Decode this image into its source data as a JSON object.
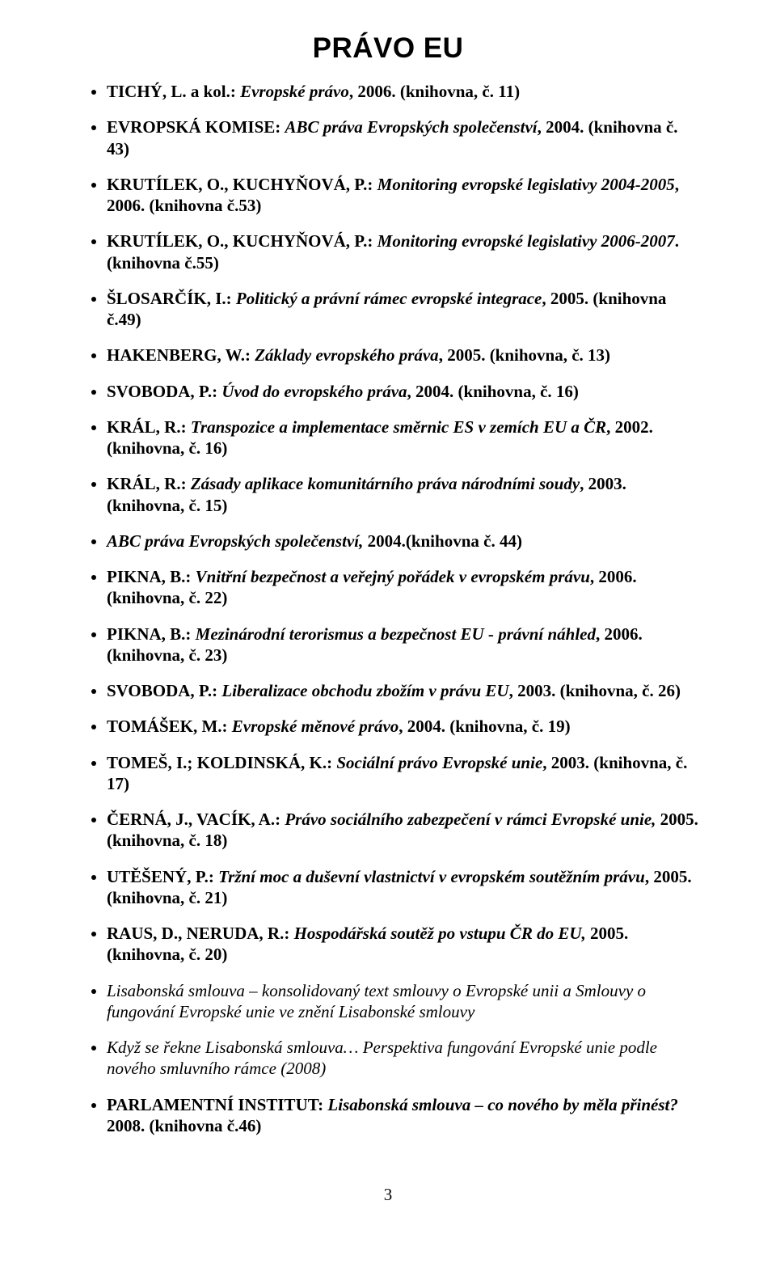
{
  "title": "PRÁVO EU",
  "page_number": "3",
  "entries": [
    {
      "segments": [
        {
          "cls": "b",
          "t": "TICHÝ, L. a kol.: "
        },
        {
          "cls": "bi",
          "t": "Evropské právo"
        },
        {
          "cls": "b",
          "t": ", 2006. (knihovna, č. 11)"
        }
      ]
    },
    {
      "segments": [
        {
          "cls": "b",
          "t": "EVROPSKÁ KOMISE: "
        },
        {
          "cls": "bi",
          "t": "ABC práva Evropských společenství"
        },
        {
          "cls": "b",
          "t": ", 2004. (knihovna č. 43)"
        }
      ]
    },
    {
      "segments": [
        {
          "cls": "b",
          "t": "KRUTÍLEK, O., KUCHYŇOVÁ, P.: "
        },
        {
          "cls": "bi",
          "t": "Monitoring evropské legislativy 2004-2005"
        },
        {
          "cls": "b",
          "t": ", 2006. (knihovna č.53)"
        }
      ]
    },
    {
      "segments": [
        {
          "cls": "b",
          "t": "KRUTÍLEK, O., KUCHYŇOVÁ, P.: "
        },
        {
          "cls": "bi",
          "t": "Monitoring evropské legislativy 2006-2007"
        },
        {
          "cls": "b",
          "t": ". (knihovna č.55)"
        }
      ]
    },
    {
      "segments": [
        {
          "cls": "b",
          "t": "ŠLOSARČÍK, I.: "
        },
        {
          "cls": "bi",
          "t": "Politický a právní rámec evropské integrace"
        },
        {
          "cls": "b",
          "t": ", 2005. (knihovna č.49)"
        }
      ]
    },
    {
      "segments": [
        {
          "cls": "b",
          "t": "HAKENBERG, W.: "
        },
        {
          "cls": "bi",
          "t": "Základy evropského práva"
        },
        {
          "cls": "b",
          "t": ", 2005. (knihovna, č. 13)"
        }
      ]
    },
    {
      "segments": [
        {
          "cls": "b",
          "t": "SVOBODA, P.: "
        },
        {
          "cls": "bi",
          "t": "Úvod do evropského práva"
        },
        {
          "cls": "b",
          "t": ", 2004. (knihovna, č. 16)"
        }
      ]
    },
    {
      "segments": [
        {
          "cls": "b",
          "t": "KRÁL, R.: "
        },
        {
          "cls": "bi",
          "t": "Transpozice a implementace směrnic ES v zemích EU a ČR"
        },
        {
          "cls": "b",
          "t": ", 2002. (knihovna, č. 16)"
        }
      ]
    },
    {
      "segments": [
        {
          "cls": "b",
          "t": "KRÁL, R.: "
        },
        {
          "cls": "bi",
          "t": "Zásady aplikace komunitárního práva národními soudy"
        },
        {
          "cls": "b",
          "t": ", 2003. (knihovna, č. 15)"
        }
      ]
    },
    {
      "segments": [
        {
          "cls": "bi",
          "t": "ABC práva Evropských společenství, "
        },
        {
          "cls": "b",
          "t": "2004.(knihovna č. 44)"
        }
      ]
    },
    {
      "segments": [
        {
          "cls": "b",
          "t": "PIKNA, B.: "
        },
        {
          "cls": "bi",
          "t": "Vnitřní bezpečnost a veřejný pořádek v evropském právu"
        },
        {
          "cls": "b",
          "t": ", 2006. (knihovna, č. 22)"
        }
      ]
    },
    {
      "segments": [
        {
          "cls": "b",
          "t": "PIKNA, B.: "
        },
        {
          "cls": "bi",
          "t": "Mezinárodní terorismus a bezpečnost EU - právní náhled"
        },
        {
          "cls": "b",
          "t": ", 2006. (knihovna, č. 23)"
        }
      ]
    },
    {
      "segments": [
        {
          "cls": "b",
          "t": "SVOBODA, P.: "
        },
        {
          "cls": "bi",
          "t": "Liberalizace obchodu zbožím v právu EU"
        },
        {
          "cls": "b",
          "t": ", 2003. (knihovna, č. 26)"
        }
      ]
    },
    {
      "segments": [
        {
          "cls": "b",
          "t": "TOMÁŠEK, M.: "
        },
        {
          "cls": "bi",
          "t": "Evropské měnové právo"
        },
        {
          "cls": "b",
          "t": ", 2004. (knihovna, č. 19)"
        }
      ]
    },
    {
      "segments": [
        {
          "cls": "b",
          "t": "TOMEŠ, I.; KOLDINSKÁ, K.: "
        },
        {
          "cls": "bi",
          "t": "Sociální právo Evropské unie"
        },
        {
          "cls": "b",
          "t": ", 2003. (knihovna, č. 17)"
        }
      ]
    },
    {
      "segments": [
        {
          "cls": "b",
          "t": "ČERNÁ, J., VACÍK, A.: "
        },
        {
          "cls": "bi",
          "t": "Právo sociálního zabezpečení v rámci Evropské unie, "
        },
        {
          "cls": "b",
          "t": "2005. (knihovna, č. 18)"
        }
      ]
    },
    {
      "segments": [
        {
          "cls": "b",
          "t": "UTĚŠENÝ, P.: "
        },
        {
          "cls": "bi",
          "t": "Tržní moc a duševní vlastnictví v evropském soutěžním právu"
        },
        {
          "cls": "b",
          "t": ", 2005. (knihovna, č. 21)"
        }
      ]
    },
    {
      "segments": [
        {
          "cls": "b",
          "t": "RAUS, D., NERUDA, R.: "
        },
        {
          "cls": "bi",
          "t": "Hospodářská soutěž po vstupu ČR do EU, "
        },
        {
          "cls": "b",
          "t": "2005. (knihovna, č. 20)"
        }
      ]
    },
    {
      "segments": [
        {
          "cls": "i",
          "t": "Lisabonská smlouva – konsolidovaný text smlouvy o Evropské unii a Smlouvy o fungování Evropské unie ve znění Lisabonské smlouvy"
        }
      ]
    },
    {
      "segments": [
        {
          "cls": "i",
          "t": "Když se řekne Lisabonská smlouva… Perspektiva fungování Evropské unie podle nového smluvního rámce (2008)"
        }
      ]
    },
    {
      "segments": [
        {
          "cls": "b",
          "t": "PARLAMENTNÍ INSTITUT: "
        },
        {
          "cls": "bi",
          "t": "Lisabonská smlouva – co nového by měla přinést?"
        },
        {
          "cls": "b",
          "t": " 2008. (knihovna č.46)"
        }
      ]
    }
  ]
}
